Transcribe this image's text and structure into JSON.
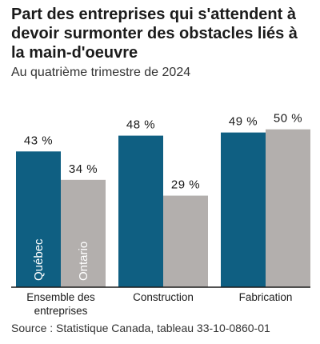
{
  "header": {
    "title": "Part des entreprises qui s'attendent à devoir surmonter des obstacles liés à la main-d'oeuvre",
    "subtitle": "Au quatrième trimestre de 2024"
  },
  "footer": {
    "source": "Source : Statistique Canada, tableau 33-10-0860-01"
  },
  "chart_data": {
    "type": "bar",
    "title": "Part des entreprises qui s'attendent à devoir surmonter des obstacles liés à la main-d'oeuvre",
    "subtitle": "Au quatrième trimestre de 2024",
    "categories": [
      [
        "Ensemble des",
        "entreprises"
      ],
      [
        "Construction"
      ],
      [
        "Fabrication"
      ]
    ],
    "series": [
      {
        "name": "Québec",
        "color": "#0f5f82",
        "values": [
          43,
          48,
          49
        ],
        "labels": [
          "43 %",
          "48 %",
          "49 %"
        ]
      },
      {
        "name": "Ontario",
        "color": "#b3afad",
        "values": [
          34,
          29,
          50
        ],
        "labels": [
          "34 %",
          "29 %",
          "50 %"
        ]
      }
    ],
    "ylim": [
      0,
      56
    ],
    "grid": false,
    "legend": "series names written vertically inside the first group's bars"
  }
}
